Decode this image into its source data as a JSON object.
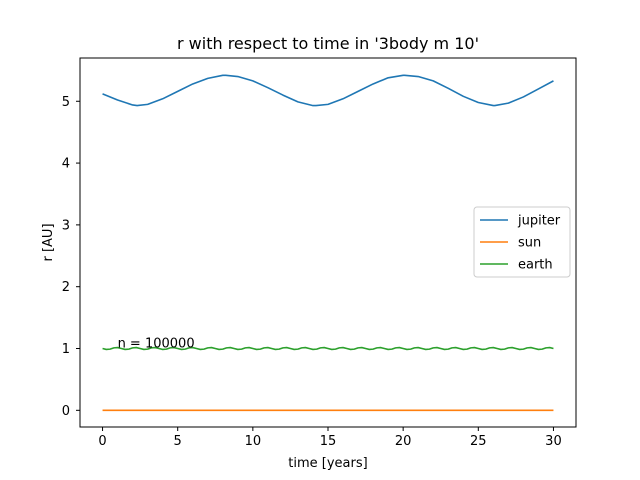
{
  "chart_data": {
    "type": "line",
    "title": "r with respect to time in '3body m 10'",
    "xlabel": "time [years]",
    "ylabel": "r [AU]",
    "xlim": [
      -1.5,
      31.5
    ],
    "ylim": [
      -0.27,
      5.7
    ],
    "xticks": [
      0,
      5,
      10,
      15,
      20,
      25,
      30
    ],
    "yticks": [
      0,
      1,
      2,
      3,
      4,
      5
    ],
    "grid": false,
    "legend_position": "center-right",
    "annotation": {
      "text": "n = 100000",
      "x": 1.0,
      "y": 1.0
    },
    "series": [
      {
        "name": "jupiter",
        "color": "#1f77b4",
        "x": [
          0,
          1,
          2,
          2.3,
          3,
          4,
          5,
          6,
          7,
          8,
          8.2,
          9,
          10,
          11,
          12,
          13,
          14,
          14.2,
          15,
          16,
          17,
          18,
          19,
          20,
          20.1,
          21,
          22,
          23,
          24,
          25,
          26,
          26.1,
          27,
          28,
          29,
          30
        ],
        "y": [
          5.12,
          5.02,
          4.94,
          4.93,
          4.95,
          5.04,
          5.16,
          5.28,
          5.37,
          5.42,
          5.42,
          5.4,
          5.33,
          5.22,
          5.1,
          4.99,
          4.93,
          4.93,
          4.95,
          5.04,
          5.16,
          5.28,
          5.38,
          5.42,
          5.42,
          5.4,
          5.33,
          5.21,
          5.08,
          4.98,
          4.93,
          4.93,
          4.97,
          5.07,
          5.2,
          5.33
        ]
      },
      {
        "name": "sun",
        "color": "#ff7f0e",
        "x": [
          0,
          30
        ],
        "y": [
          0.0,
          0.0
        ]
      },
      {
        "name": "earth",
        "color": "#2ca02c",
        "x": [
          0,
          0.25,
          0.5,
          0.75,
          1,
          1.25,
          1.5,
          1.75,
          2,
          2.25,
          2.5,
          2.75,
          3,
          3.25,
          3.5,
          3.75,
          4,
          4.25,
          4.5,
          4.75,
          5,
          5.25,
          5.5,
          5.75,
          6,
          6.25,
          6.5,
          6.75,
          7,
          7.25,
          7.5,
          7.75,
          8,
          8.25,
          8.5,
          8.75,
          9,
          9.25,
          9.5,
          9.75,
          10,
          10.25,
          10.5,
          10.75,
          11,
          11.25,
          11.5,
          11.75,
          12,
          12.25,
          12.5,
          12.75,
          13,
          13.25,
          13.5,
          13.75,
          14,
          14.25,
          14.5,
          14.75,
          15,
          15.25,
          15.5,
          15.75,
          16,
          16.25,
          16.5,
          16.75,
          17,
          17.25,
          17.5,
          17.75,
          18,
          18.25,
          18.5,
          18.75,
          19,
          19.25,
          19.5,
          19.75,
          20,
          20.25,
          20.5,
          20.75,
          21,
          21.25,
          21.5,
          21.75,
          22,
          22.25,
          22.5,
          22.75,
          23,
          23.25,
          23.5,
          23.75,
          24,
          24.25,
          24.5,
          24.75,
          25,
          25.25,
          25.5,
          25.75,
          26,
          26.25,
          26.5,
          26.75,
          27,
          27.25,
          27.5,
          27.75,
          28,
          28.25,
          28.5,
          28.75,
          29,
          29.25,
          29.5,
          29.75,
          30
        ],
        "y": [
          1.0,
          0.985,
          0.99,
          1.01,
          1.015,
          1.0,
          0.985,
          0.99,
          1.01,
          1.015,
          1.0,
          0.985,
          0.99,
          1.01,
          1.015,
          1.0,
          0.985,
          0.99,
          1.01,
          1.015,
          1.0,
          0.985,
          0.99,
          1.01,
          1.015,
          1.0,
          0.985,
          0.99,
          1.01,
          1.015,
          1.0,
          0.985,
          0.99,
          1.01,
          1.015,
          1.0,
          0.985,
          0.99,
          1.01,
          1.015,
          1.0,
          0.985,
          0.99,
          1.01,
          1.015,
          1.0,
          0.985,
          0.99,
          1.01,
          1.015,
          1.0,
          0.985,
          0.99,
          1.01,
          1.015,
          1.0,
          0.985,
          0.99,
          1.01,
          1.015,
          1.0,
          0.985,
          0.99,
          1.01,
          1.015,
          1.0,
          0.985,
          0.99,
          1.01,
          1.015,
          1.0,
          0.985,
          0.99,
          1.01,
          1.015,
          1.0,
          0.985,
          0.99,
          1.01,
          1.015,
          1.0,
          0.985,
          0.99,
          1.01,
          1.015,
          1.0,
          0.985,
          0.99,
          1.01,
          1.015,
          1.0,
          0.985,
          0.99,
          1.01,
          1.015,
          1.0,
          0.985,
          0.99,
          1.01,
          1.015,
          1.0,
          0.985,
          0.99,
          1.01,
          1.015,
          1.0,
          0.985,
          0.99,
          1.01,
          1.015,
          1.0,
          0.985,
          0.99,
          1.01,
          1.015,
          1.0,
          0.985,
          0.99,
          1.01,
          1.015,
          1.0
        ]
      }
    ]
  }
}
